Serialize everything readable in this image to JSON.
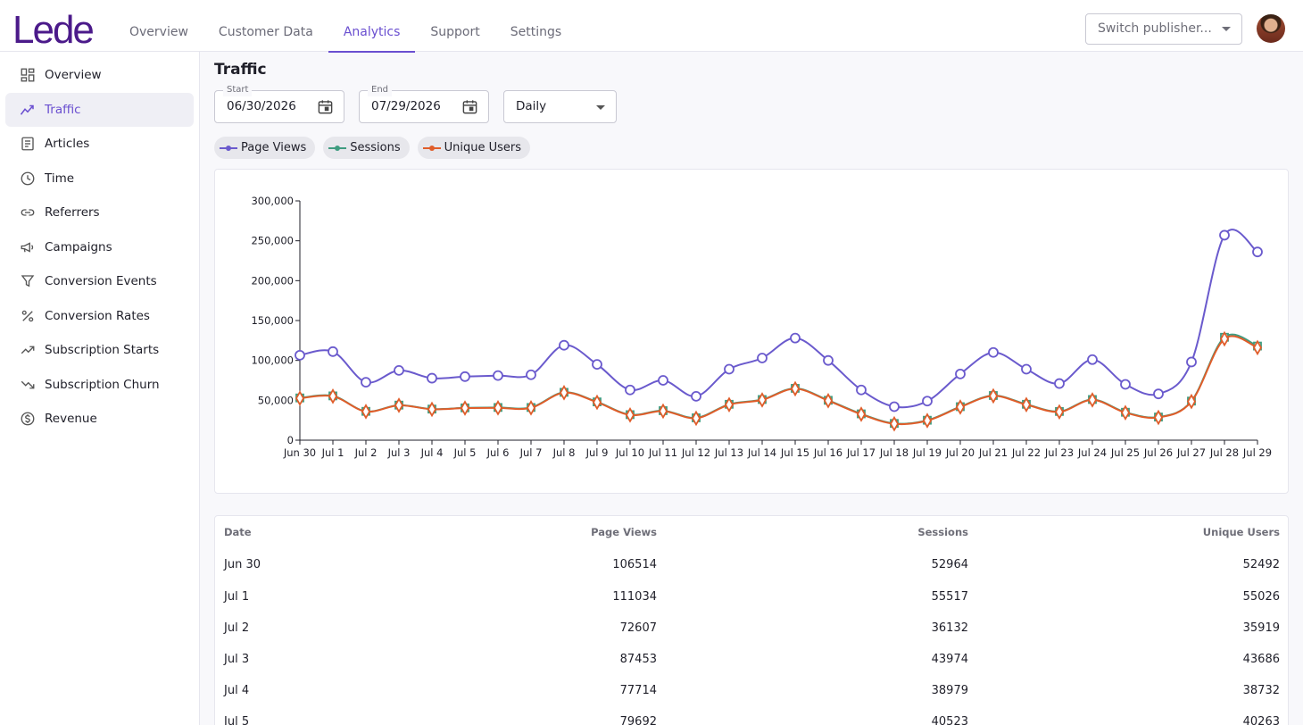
{
  "app": {
    "logo": "Lede"
  },
  "topnav": [
    {
      "label": "Overview",
      "active": false
    },
    {
      "label": "Customer Data",
      "active": false
    },
    {
      "label": "Analytics",
      "active": true
    },
    {
      "label": "Support",
      "active": false
    },
    {
      "label": "Settings",
      "active": false
    }
  ],
  "publisher_switch": {
    "placeholder": "Switch publisher..."
  },
  "sidebar": {
    "items": [
      {
        "label": "Overview",
        "icon": "dashboard-icon",
        "active": false
      },
      {
        "label": "Traffic",
        "icon": "trending-line-icon",
        "active": true
      },
      {
        "label": "Articles",
        "icon": "article-icon",
        "active": false
      },
      {
        "label": "Time",
        "icon": "clock-icon",
        "active": false
      },
      {
        "label": "Referrers",
        "icon": "link-icon",
        "active": false
      },
      {
        "label": "Campaigns",
        "icon": "megaphone-icon",
        "active": false
      },
      {
        "label": "Conversion Events",
        "icon": "filter-icon",
        "active": false
      },
      {
        "label": "Conversion Rates",
        "icon": "percent-icon",
        "active": false
      },
      {
        "label": "Subscription Starts",
        "icon": "trending-up-icon",
        "active": false
      },
      {
        "label": "Subscription Churn",
        "icon": "trending-down-icon",
        "active": false
      },
      {
        "label": "Revenue",
        "icon": "dollar-circle-icon",
        "active": false
      }
    ]
  },
  "page": {
    "title": "Traffic",
    "start_label": "Start",
    "start_value": "06/30/2026",
    "end_label": "End",
    "end_value": "07/29/2026",
    "granularity": "Daily"
  },
  "legend": [
    {
      "name": "Page Views",
      "color": "#6a5acd"
    },
    {
      "name": "Sessions",
      "color": "#3f9c80"
    },
    {
      "name": "Unique Users",
      "color": "#e05d2a"
    }
  ],
  "chart_data": {
    "type": "line",
    "x": [
      "Jun 30",
      "Jul 1",
      "Jul 2",
      "Jul 3",
      "Jul 4",
      "Jul 5",
      "Jul 6",
      "Jul 7",
      "Jul 8",
      "Jul 9",
      "Jul 10",
      "Jul 11",
      "Jul 12",
      "Jul 13",
      "Jul 14",
      "Jul 15",
      "Jul 16",
      "Jul 17",
      "Jul 18",
      "Jul 19",
      "Jul 20",
      "Jul 21",
      "Jul 22",
      "Jul 23",
      "Jul 24",
      "Jul 25",
      "Jul 26",
      "Jul 27",
      "Jul 28",
      "Jul 29"
    ],
    "series": [
      {
        "name": "Page Views",
        "color": "#6a5acd",
        "values": [
          106514,
          111034,
          72607,
          87453,
          77714,
          79692,
          81000,
          82000,
          119000,
          95000,
          63000,
          75000,
          55000,
          89000,
          103000,
          128000,
          100000,
          63000,
          42000,
          49000,
          83000,
          110000,
          89000,
          71000,
          101000,
          70000,
          58000,
          98000,
          257000,
          236000
        ]
      },
      {
        "name": "Sessions",
        "color": "#3f9c80",
        "values": [
          52964,
          55517,
          36132,
          43974,
          38979,
          40523,
          41000,
          41000,
          60000,
          48000,
          32000,
          37000,
          28000,
          45000,
          51000,
          65000,
          50000,
          33000,
          21000,
          25000,
          42000,
          56000,
          45000,
          36000,
          51000,
          35000,
          29000,
          49000,
          129000,
          118000
        ]
      },
      {
        "name": "Unique Users",
        "color": "#e05d2a",
        "values": [
          52492,
          55026,
          35919,
          43686,
          38732,
          40263,
          40500,
          40500,
          59500,
          47500,
          31500,
          36500,
          27500,
          44500,
          50500,
          64500,
          49500,
          32500,
          20500,
          24500,
          41500,
          55500,
          44500,
          35500,
          50500,
          34500,
          28500,
          48500,
          127000,
          116000
        ]
      }
    ],
    "ylim": [
      0,
      300000
    ],
    "yticks": [
      "0",
      "50,000",
      "100,000",
      "150,000",
      "200,000",
      "250,000",
      "300,000"
    ],
    "grid": false
  },
  "table": {
    "headers": [
      "Date",
      "Page Views",
      "Sessions",
      "Unique Users"
    ],
    "rows": [
      [
        "Jun 30",
        "106514",
        "52964",
        "52492"
      ],
      [
        "Jul 1",
        "111034",
        "55517",
        "55026"
      ],
      [
        "Jul 2",
        "72607",
        "36132",
        "35919"
      ],
      [
        "Jul 3",
        "87453",
        "43974",
        "43686"
      ],
      [
        "Jul 4",
        "77714",
        "38979",
        "38732"
      ],
      [
        "Jul 5",
        "79692",
        "40523",
        "40263"
      ]
    ]
  }
}
